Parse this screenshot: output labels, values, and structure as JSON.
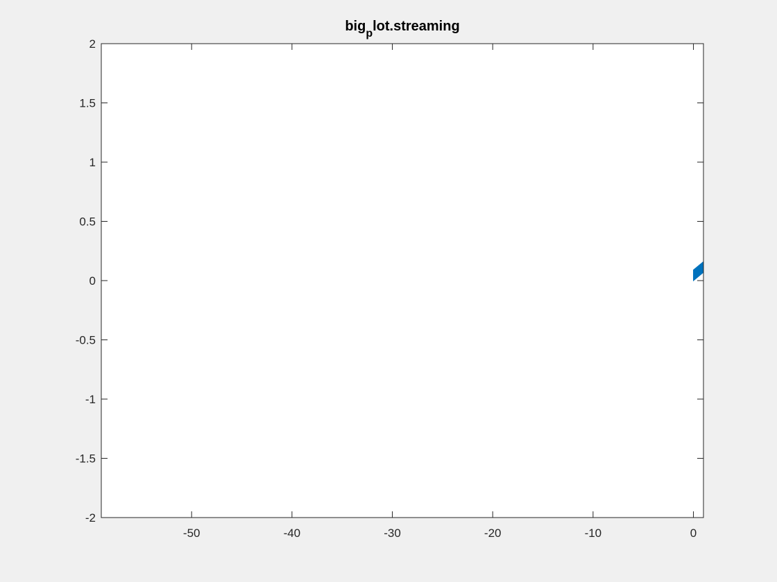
{
  "figure": {
    "background": "#f0f0f0"
  },
  "chart_data": {
    "type": "area",
    "title_main": "big",
    "title_sub": "p",
    "title_rest": "lot.streaming",
    "xlabel": "",
    "ylabel": "",
    "xlim": [
      -59,
      1
    ],
    "ylim": [
      -2,
      2
    ],
    "xticks": [
      -50,
      -40,
      -30,
      -20,
      -10,
      0
    ],
    "yticks": [
      -2,
      -1.5,
      -1,
      -0.5,
      0,
      0.5,
      1,
      1.5,
      2
    ],
    "grid": false,
    "series": [
      {
        "color": "#0072bd",
        "points": [
          [
            0,
            0
          ],
          [
            0,
            0.09
          ],
          [
            1,
            0.16
          ],
          [
            1,
            0.07
          ]
        ]
      }
    ],
    "colors": {
      "axes_bg": "#ffffff",
      "axis_line": "#262626",
      "series": "#0072bd"
    }
  }
}
